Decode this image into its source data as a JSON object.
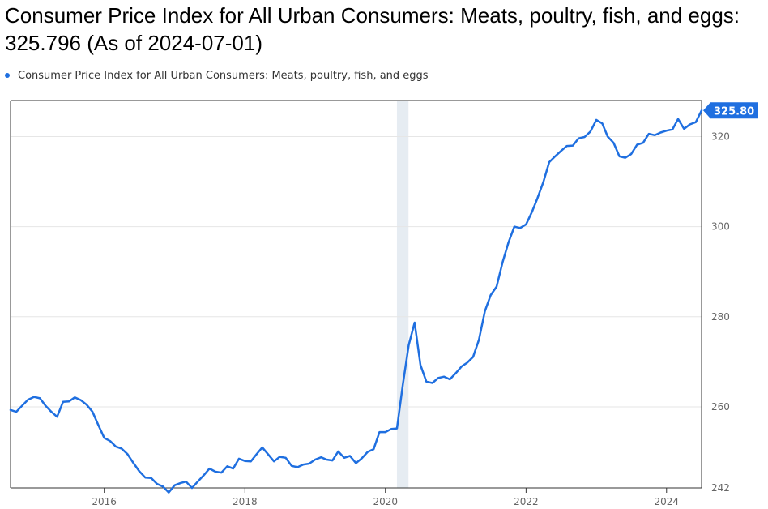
{
  "title": "Consumer Price Index for All Urban Consumers: Meats, poultry, fish, and eggs: 325.796 (As of 2024-07-01)",
  "legend_label": "Consumer Price Index for All Urban Consumers: Meats, poultry, fish, and eggs",
  "colors": {
    "series": "#1f6fe0",
    "recession": "#e6ecf2",
    "grid": "#e6e6e6",
    "axis": "#333333"
  },
  "chart_data": {
    "type": "line",
    "series": [
      {
        "name": "Consumer Price Index for All Urban Consumers: Meats, poultry, fish, and eggs",
        "x": [
          "2014-09-01",
          "2014-10-01",
          "2014-11-01",
          "2014-12-01",
          "2015-01-01",
          "2015-02-01",
          "2015-03-01",
          "2015-04-01",
          "2015-05-01",
          "2015-06-01",
          "2015-07-01",
          "2015-08-01",
          "2015-09-01",
          "2015-10-01",
          "2015-11-01",
          "2015-12-01",
          "2016-01-01",
          "2016-02-01",
          "2016-03-01",
          "2016-04-01",
          "2016-05-01",
          "2016-06-01",
          "2016-07-01",
          "2016-08-01",
          "2016-09-01",
          "2016-10-01",
          "2016-11-01",
          "2016-12-01",
          "2017-01-01",
          "2017-02-01",
          "2017-03-01",
          "2017-04-01",
          "2017-05-01",
          "2017-06-01",
          "2017-07-01",
          "2017-08-01",
          "2017-09-01",
          "2017-10-01",
          "2017-11-01",
          "2017-12-01",
          "2018-01-01",
          "2018-02-01",
          "2018-03-01",
          "2018-04-01",
          "2018-05-01",
          "2018-06-01",
          "2018-07-01",
          "2018-08-01",
          "2018-09-01",
          "2018-10-01",
          "2018-11-01",
          "2018-12-01",
          "2019-01-01",
          "2019-02-01",
          "2019-03-01",
          "2019-04-01",
          "2019-05-01",
          "2019-06-01",
          "2019-07-01",
          "2019-08-01",
          "2019-09-01",
          "2019-10-01",
          "2019-11-01",
          "2019-12-01",
          "2020-01-01",
          "2020-02-01",
          "2020-03-01",
          "2020-04-01",
          "2020-05-01",
          "2020-06-01",
          "2020-07-01",
          "2020-08-01",
          "2020-09-01",
          "2020-10-01",
          "2020-11-01",
          "2020-12-01",
          "2021-01-01",
          "2021-02-01",
          "2021-03-01",
          "2021-04-01",
          "2021-05-01",
          "2021-06-01",
          "2021-07-01",
          "2021-08-01",
          "2021-09-01",
          "2021-10-01",
          "2021-11-01",
          "2021-12-01",
          "2022-01-01",
          "2022-02-01",
          "2022-03-01",
          "2022-04-01",
          "2022-05-01",
          "2022-06-01",
          "2022-07-01",
          "2022-08-01",
          "2022-09-01",
          "2022-10-01",
          "2022-11-01",
          "2022-12-01",
          "2023-01-01",
          "2023-02-01",
          "2023-03-01",
          "2023-04-01",
          "2023-05-01",
          "2023-06-01",
          "2023-07-01",
          "2023-08-01",
          "2023-09-01",
          "2023-10-01",
          "2023-11-01",
          "2023-12-01",
          "2024-01-01",
          "2024-02-01",
          "2024-03-01",
          "2024-04-01",
          "2024-05-01",
          "2024-06-01",
          "2024-07-01"
        ],
        "values": [
          259.3,
          258.9,
          260.3,
          261.6,
          262.2,
          261.9,
          260.3,
          258.9,
          257.8,
          261.1,
          261.2,
          262.1,
          261.5,
          260.5,
          258.9,
          256.0,
          253.1,
          252.4,
          251.2,
          250.7,
          249.5,
          247.5,
          245.7,
          244.3,
          244.2,
          242.9,
          242.3,
          241.0,
          242.6,
          243.1,
          243.4,
          242.0,
          243.4,
          244.8,
          246.3,
          245.6,
          245.4,
          246.8,
          246.3,
          248.5,
          248.0,
          247.9,
          249.4,
          251.0,
          249.5,
          247.9,
          248.9,
          248.7,
          246.9,
          246.6,
          247.2,
          247.4,
          248.3,
          248.8,
          248.3,
          248.1,
          250.1,
          248.7,
          249.1,
          247.5,
          248.6,
          250.0,
          250.6,
          254.4,
          254.4,
          255.1,
          255.2,
          265.0,
          273.7,
          278.7,
          269.3,
          265.6,
          265.3,
          266.4,
          266.7,
          266.1,
          267.5,
          269.0,
          269.8,
          271.1,
          274.9,
          281.2,
          284.8,
          286.7,
          292.1,
          296.4,
          300.0,
          299.7,
          300.5,
          303.3,
          306.3,
          309.9,
          314.3,
          315.6,
          316.8,
          317.9,
          318.0,
          319.6,
          319.9,
          321.1,
          323.7,
          322.9,
          320.0,
          318.6,
          315.6,
          315.3,
          316.1,
          318.2,
          318.6,
          320.6,
          320.3,
          320.9,
          321.3,
          321.6,
          323.9,
          321.7,
          322.7,
          323.2,
          325.796
        ]
      }
    ],
    "x_ticks": [
      "2016",
      "2018",
      "2020",
      "2022",
      "2024"
    ],
    "y_ticks": [
      "242",
      "260",
      "280",
      "300",
      "320"
    ],
    "ylim": [
      242,
      328
    ],
    "xlim": [
      "2014-09-01",
      "2024-07-01"
    ],
    "recessions": [
      {
        "start": "2020-03-01",
        "end": "2020-04-30"
      }
    ],
    "last_value_label": "325.80",
    "y_axis_side": "right",
    "grid": true
  }
}
